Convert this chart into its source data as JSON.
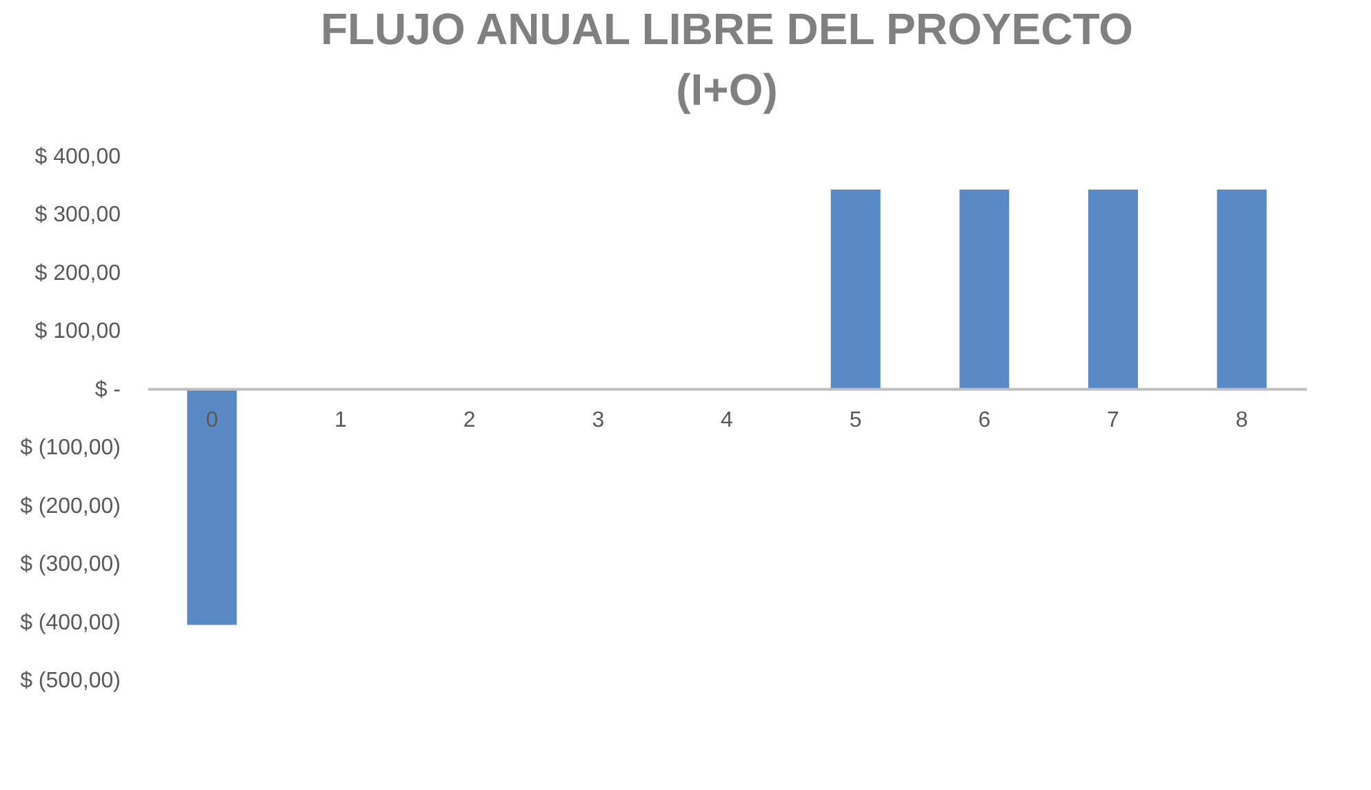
{
  "chart_data": {
    "type": "bar",
    "title": [
      "FLUJO ANUAL LIBRE DEL PROYECTO",
      "(I+O)"
    ],
    "categories": [
      "0",
      "1",
      "2",
      "3",
      "4",
      "5",
      "6",
      "7",
      "8"
    ],
    "values": [
      -406,
      0,
      0,
      0,
      0,
      342,
      342,
      342,
      342
    ],
    "color": "#5a8ac6",
    "ylim": [
      -500,
      400
    ],
    "yticks": [
      {
        "value": 400,
        "label": "$ 400,00"
      },
      {
        "value": 300,
        "label": "$ 300,00"
      },
      {
        "value": 200,
        "label": "$ 200,00"
      },
      {
        "value": 100,
        "label": "$ 100,00"
      },
      {
        "value": 0,
        "label": "$ -"
      },
      {
        "value": -100,
        "label": "$ (100,00)"
      },
      {
        "value": -200,
        "label": "$ (200,00)"
      },
      {
        "value": -300,
        "label": "$ (300,00)"
      },
      {
        "value": -400,
        "label": "$ (400,00)"
      },
      {
        "value": -500,
        "label": "$ (500,00)"
      }
    ],
    "grid": false
  }
}
